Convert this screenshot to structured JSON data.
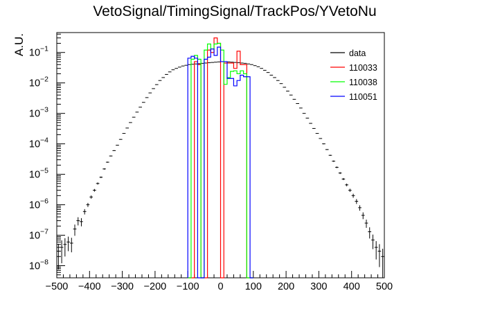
{
  "chart_data": {
    "type": "histogram",
    "title": "VetoSignal/TimingSignal/TrackPos/YVetoNu",
    "xlabel": "",
    "ylabel": "A.U.",
    "xlim": [
      -500,
      500
    ],
    "ylog": true,
    "ylim": [
      4e-09,
      0.45
    ],
    "grid": false,
    "legend_position": "top-right",
    "x_tick_labels": [
      "−500",
      "−400",
      "−300",
      "−200",
      "−100",
      "0",
      "100",
      "200",
      "300",
      "400",
      "500"
    ],
    "x_tick_values": [
      -500,
      -400,
      -300,
      -200,
      -100,
      0,
      100,
      200,
      300,
      400,
      500
    ],
    "y_decades": [
      -8,
      -7,
      -6,
      -5,
      -4,
      -3,
      -2,
      -1
    ],
    "series": [
      {
        "name": "data",
        "color": "#000000",
        "kind": "errorbar",
        "bin_width": 10,
        "x": [
          -495,
          -485,
          -475,
          -465,
          -455,
          -445,
          -435,
          -425,
          -415,
          -405,
          -395,
          -385,
          -375,
          -365,
          -355,
          -345,
          -335,
          -325,
          -315,
          -305,
          -295,
          -285,
          -275,
          -265,
          -255,
          -245,
          -235,
          -225,
          -215,
          -205,
          -195,
          -185,
          -175,
          -165,
          -155,
          -145,
          -135,
          -125,
          -115,
          -105,
          -95,
          -85,
          -75,
          -65,
          -55,
          -45,
          -35,
          -25,
          -15,
          -5,
          5,
          15,
          25,
          35,
          45,
          55,
          65,
          75,
          85,
          95,
          105,
          115,
          125,
          135,
          145,
          155,
          165,
          175,
          185,
          195,
          205,
          215,
          225,
          235,
          245,
          255,
          265,
          275,
          285,
          295,
          305,
          315,
          325,
          335,
          345,
          355,
          365,
          375,
          385,
          395,
          405,
          415,
          425,
          435,
          445,
          455,
          465,
          475,
          485,
          495
        ],
        "y": [
          3e-08,
          4e-08,
          5e-08,
          6e-08,
          5.5e-08,
          1.6e-07,
          3e-07,
          2.8e-07,
          6e-07,
          1e-06,
          1.8e-06,
          3e-06,
          5e-06,
          8e-06,
          1.5e-05,
          2.5e-05,
          4e-05,
          6e-05,
          9e-05,
          0.00014,
          0.00022,
          0.00033,
          0.0005,
          0.00075,
          0.0011,
          0.0016,
          0.0023,
          0.0033,
          0.0047,
          0.0065,
          0.0088,
          0.012,
          0.015,
          0.019,
          0.023,
          0.027,
          0.03,
          0.033,
          0.036,
          0.038,
          0.04,
          0.041,
          0.042,
          0.043,
          0.044,
          0.045,
          0.046,
          0.047,
          0.048,
          0.049,
          0.05,
          0.05,
          0.049,
          0.048,
          0.047,
          0.046,
          0.045,
          0.044,
          0.042,
          0.04,
          0.037,
          0.034,
          0.03,
          0.026,
          0.022,
          0.018,
          0.015,
          0.012,
          0.0095,
          0.0072,
          0.0054,
          0.004,
          0.0029,
          0.0021,
          0.0015,
          0.001,
          0.0007,
          0.00047,
          0.00032,
          0.00022,
          0.00015,
          0.0001,
          6.5e-05,
          4.2e-05,
          2.7e-05,
          1.7e-05,
          1.1e-05,
          7e-06,
          4.5e-06,
          3e-06,
          2e-06,
          1.3e-06,
          8e-07,
          4.5e-07,
          2.5e-07,
          1.3e-07,
          7e-08,
          4e-08,
          3e-08,
          2e-08
        ],
        "y_err_frac": [
          0.75,
          0.7,
          0.6,
          0.5,
          0.5,
          0.4,
          0.3,
          0.3,
          0.2,
          0.15,
          0.12,
          0.1,
          0.08,
          0.06,
          0.05,
          0.04,
          0.03,
          0.03,
          0.02,
          0.02,
          0.015,
          0.01,
          0.01,
          0.01,
          0.01,
          0.01,
          0.01,
          0.01,
          0.01,
          0.01,
          0.01,
          0.01,
          0.01,
          0.01,
          0.01,
          0.01,
          0.01,
          0.01,
          0.01,
          0.01,
          0.01,
          0.01,
          0.01,
          0.01,
          0.01,
          0.01,
          0.01,
          0.01,
          0.01,
          0.01,
          0.01,
          0.01,
          0.01,
          0.01,
          0.01,
          0.01,
          0.01,
          0.01,
          0.01,
          0.01,
          0.01,
          0.01,
          0.01,
          0.01,
          0.01,
          0.01,
          0.01,
          0.01,
          0.01,
          0.01,
          0.01,
          0.01,
          0.01,
          0.01,
          0.01,
          0.01,
          0.01,
          0.015,
          0.02,
          0.02,
          0.02,
          0.03,
          0.03,
          0.04,
          0.05,
          0.06,
          0.07,
          0.08,
          0.1,
          0.12,
          0.15,
          0.18,
          0.2,
          0.25,
          0.3,
          0.4,
          0.5,
          0.6,
          0.7,
          0.8
        ]
      },
      {
        "name": "110033",
        "color": "#ff0000",
        "kind": "step",
        "edges": [
          -100,
          -90,
          -80,
          -70,
          -60,
          -50,
          -40,
          -30,
          -20,
          -10,
          0,
          10,
          20,
          30,
          40,
          50,
          60,
          70,
          80,
          90,
          100
        ],
        "values": [
          0,
          0,
          0.05,
          0.04,
          0,
          0,
          0.12,
          0.1,
          0.3,
          0.2,
          0,
          0.045,
          0.045,
          0.045,
          0.03,
          0.11,
          0.04,
          0.04,
          0,
          0
        ]
      },
      {
        "name": "110038",
        "color": "#00ff00",
        "kind": "step",
        "edges": [
          -100,
          -90,
          -80,
          -70,
          -60,
          -50,
          -40,
          -30,
          -20,
          -10,
          0,
          10,
          20,
          30,
          40,
          50,
          60,
          70,
          80,
          90,
          100
        ],
        "values": [
          0,
          0.06,
          0.08,
          0.06,
          0,
          0.12,
          0.19,
          0.13,
          0.19,
          0.2,
          0.12,
          0.009,
          0.015,
          0.024,
          0.025,
          0.02,
          0.025,
          0.02,
          0,
          0
        ]
      },
      {
        "name": "110051",
        "color": "#0000ff",
        "kind": "step",
        "edges": [
          -100,
          -90,
          -80,
          -70,
          -60,
          -50,
          -40,
          -30,
          -20,
          -10,
          0,
          10,
          20,
          30,
          40,
          50,
          60,
          70,
          80,
          90,
          100
        ],
        "values": [
          0.065,
          0.075,
          0.065,
          0,
          0,
          0.06,
          0.07,
          0.13,
          0.08,
          0.15,
          0.05,
          0.05,
          0.014,
          0.014,
          0.008,
          0.012,
          0.018,
          0.016,
          0.016,
          0
        ]
      }
    ]
  }
}
